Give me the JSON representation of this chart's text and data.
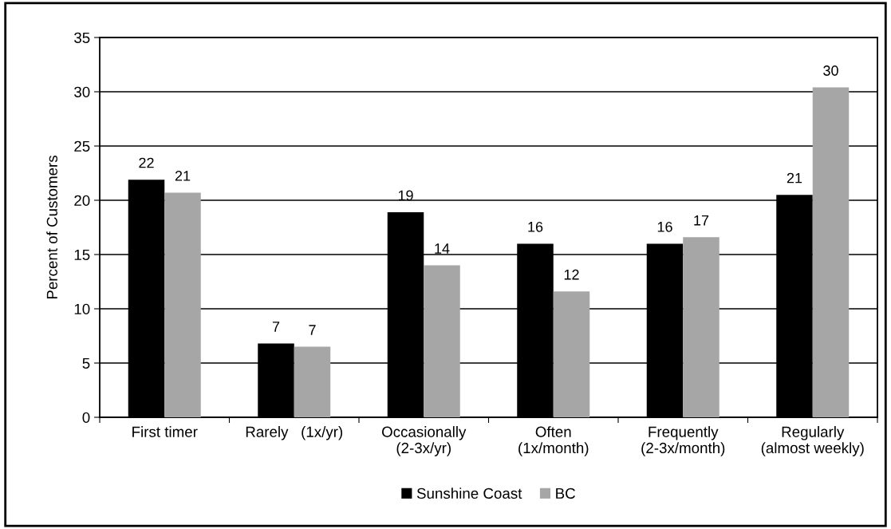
{
  "chart_data": {
    "type": "bar",
    "ylabel": "Percent of Customers",
    "categories": [
      "First timer",
      "Rarely   (1x/yr)",
      "Occasionally\n(2-3x/yr)",
      "Often\n(1x/month)",
      "Frequently\n(2-3x/month)",
      "Regularly\n(almost weekly)"
    ],
    "series": [
      {
        "name": "Sunshine Coast",
        "color": "#000000",
        "values": [
          21.9,
          6.8,
          18.9,
          16.0,
          16.0,
          20.5
        ],
        "value_labels": [
          "22",
          "7",
          "19",
          "16",
          "16",
          "21"
        ]
      },
      {
        "name": "BC",
        "color": "#a6a6a6",
        "values": [
          20.7,
          6.5,
          14.0,
          11.6,
          16.6,
          30.4
        ],
        "value_labels": [
          "21",
          "7",
          "14",
          "12",
          "17",
          "30"
        ]
      }
    ],
    "ylim": [
      0,
      35
    ],
    "yticks": [
      0,
      5,
      10,
      15,
      20,
      25,
      30,
      35
    ],
    "grid": "y",
    "legend": "bottom"
  }
}
